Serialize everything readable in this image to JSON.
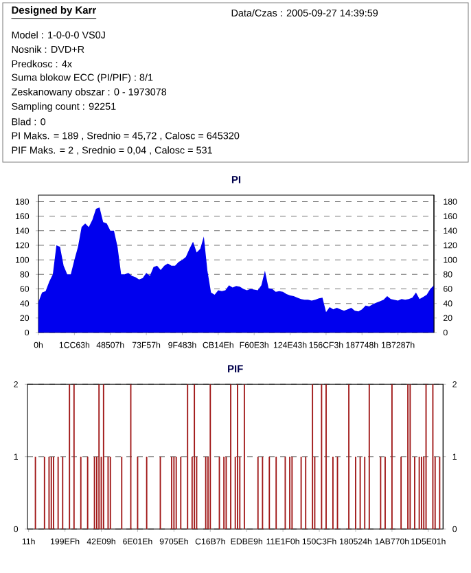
{
  "chart_data": [
    {
      "type": "other",
      "title": "Designed by Karr",
      "annotations": [
        "Data/Czas : 2005-09-27 14:39:59",
        "Model : 1-0-0-0 VS0J",
        "Nosnik : DVD+R",
        "Predkosc : 4x",
        "Suma blokow ECC (PI/PIF) : 8/1",
        "Zeskanowany obszar : 0 - 1973078",
        "Sampling count : 92251",
        "Blad : 0",
        "PI Maks. = 189 , Srednio = 45,72 , Calosc = 645320",
        "PIF Maks. = 2 , Srednio = 0,04 , Calosc = 531"
      ]
    },
    {
      "type": "area",
      "title": "PI",
      "color": "#0000ee",
      "grid": "y",
      "categories": [
        "0h",
        null,
        null,
        null,
        null,
        null,
        null,
        null,
        null,
        null,
        "1CC63h",
        null,
        null,
        null,
        null,
        null,
        null,
        null,
        null,
        null,
        "48507h",
        null,
        null,
        null,
        null,
        null,
        null,
        null,
        null,
        null,
        "73F57h",
        null,
        null,
        null,
        null,
        null,
        null,
        null,
        null,
        null,
        "9F483h",
        null,
        null,
        null,
        null,
        null,
        null,
        null,
        null,
        null,
        "CB14Eh",
        null,
        null,
        null,
        null,
        null,
        null,
        null,
        null,
        null,
        "F60E3h",
        null,
        null,
        null,
        null,
        null,
        null,
        null,
        null,
        null,
        "124E43h",
        null,
        null,
        null,
        null,
        null,
        null,
        null,
        null,
        null,
        "156CF3h",
        null,
        null,
        null,
        null,
        null,
        null,
        null,
        null,
        null,
        "187748h",
        null,
        null,
        null,
        null,
        null,
        null,
        null,
        null,
        null,
        "1B7287h",
        null,
        null,
        null,
        null,
        null,
        null,
        null,
        null,
        null,
        null
      ],
      "values": [
        42,
        55,
        57,
        70,
        80,
        120,
        118,
        92,
        80,
        80,
        100,
        118,
        145,
        150,
        145,
        155,
        170,
        172,
        152,
        150,
        140,
        140,
        118,
        80,
        80,
        82,
        78,
        76,
        73,
        75,
        82,
        78,
        90,
        92,
        86,
        92,
        95,
        92,
        92,
        97,
        100,
        104,
        115,
        125,
        110,
        115,
        132,
        85,
        55,
        52,
        58,
        57,
        58,
        65,
        62,
        64,
        63,
        60,
        58,
        60,
        59,
        58,
        65,
        85,
        61,
        60,
        56,
        57,
        56,
        53,
        51,
        50,
        48,
        46,
        45,
        45,
        44,
        45,
        47,
        48,
        28,
        35,
        32,
        34,
        32,
        30,
        32,
        34,
        30,
        29,
        32,
        37,
        36,
        39,
        41,
        43,
        45,
        50,
        46,
        45,
        44,
        46,
        45,
        46,
        48,
        55,
        46,
        49,
        52,
        60,
        65
      ],
      "ylim": [
        0,
        189
      ],
      "yticks": [
        0,
        20,
        40,
        60,
        80,
        100,
        120,
        140,
        160,
        180
      ],
      "y2lim": [
        0,
        189
      ],
      "y2ticks": [
        0,
        20,
        40,
        60,
        80,
        100,
        120,
        140,
        160,
        180
      ]
    },
    {
      "type": "bar",
      "title": "PIF",
      "color": "#a01818",
      "grid": "y",
      "categories": [
        "11h",
        null,
        null,
        null,
        null,
        null,
        null,
        null,
        null,
        null,
        null,
        null,
        null,
        null,
        null,
        null,
        "199EFh",
        null,
        null,
        null,
        null,
        null,
        null,
        null,
        null,
        null,
        null,
        null,
        null,
        null,
        null,
        null,
        "42E09h",
        null,
        null,
        null,
        null,
        null,
        null,
        null,
        null,
        null,
        null,
        null,
        null,
        null,
        null,
        null,
        "6E01Eh",
        null,
        null,
        null,
        null,
        null,
        null,
        null,
        null,
        null,
        null,
        null,
        null,
        null,
        null,
        null,
        "9705Eh",
        null,
        null,
        null,
        null,
        null,
        null,
        null,
        null,
        null,
        null,
        null,
        null,
        null,
        null,
        null,
        "C16B7h",
        null,
        null,
        null,
        null,
        null,
        null,
        null,
        null,
        null,
        null,
        null,
        null,
        null,
        null,
        null,
        "EDBE9h",
        null,
        null,
        null,
        null,
        null,
        null,
        null,
        null,
        null,
        null,
        null,
        null,
        null,
        null,
        null,
        "11E1F0h",
        null,
        null,
        null,
        null,
        null,
        null,
        null,
        null,
        null,
        null,
        null,
        null,
        null,
        null,
        null,
        "150C3Fh",
        null,
        null,
        null,
        null,
        null,
        null,
        null,
        null,
        null,
        null,
        null,
        null,
        null,
        null,
        null,
        "180524h",
        null,
        null,
        null,
        null,
        null,
        null,
        null,
        null,
        null,
        null,
        null,
        null,
        null,
        null,
        null,
        "1AB770h",
        null,
        null,
        null,
        null,
        null,
        null,
        null,
        null,
        null,
        null,
        null,
        null,
        null,
        null,
        null,
        "1D5E01h",
        null,
        null,
        null,
        null,
        null,
        null
      ],
      "values": [
        0,
        0,
        0,
        1,
        0,
        0,
        0,
        1,
        0,
        1,
        1,
        1,
        0,
        1,
        0,
        1,
        0,
        0,
        2,
        0,
        2,
        0,
        0,
        1,
        0,
        0,
        1,
        0,
        0,
        1,
        1,
        2,
        1,
        2,
        0,
        1,
        1,
        0,
        0,
        0,
        0,
        1,
        0,
        0,
        0,
        2,
        0,
        0,
        1,
        0,
        0,
        0,
        1,
        0,
        0,
        0,
        0,
        0,
        1,
        0,
        0,
        0,
        0,
        1,
        1,
        1,
        0,
        1,
        0,
        0,
        2,
        0,
        1,
        2,
        1,
        0,
        0,
        0,
        1,
        1,
        2,
        0,
        0,
        0,
        1,
        0,
        1,
        1,
        0,
        2,
        0,
        1,
        2,
        1,
        0,
        2,
        0,
        0,
        0,
        0,
        0,
        1,
        0,
        1,
        0,
        0,
        1,
        0,
        0,
        1,
        0,
        0,
        0,
        1,
        0,
        1,
        1,
        0,
        0,
        0,
        1,
        0,
        1,
        0,
        0,
        2,
        1,
        0,
        0,
        2,
        0,
        2,
        0,
        0,
        1,
        0,
        1,
        0,
        0,
        0,
        0,
        2,
        0,
        0,
        1,
        0,
        1,
        0,
        1,
        0,
        2,
        0,
        0,
        0,
        0,
        1,
        0,
        1,
        0,
        0,
        2,
        0,
        0,
        0,
        1,
        0,
        0,
        2,
        2,
        0,
        1,
        0,
        1,
        1,
        1,
        2,
        0,
        0,
        2,
        1,
        0,
        1,
        0
      ],
      "ylim": [
        0,
        2
      ],
      "yticks": [
        0,
        1,
        2
      ],
      "y2lim": [
        0,
        2
      ],
      "y2ticks": [
        0,
        1,
        2
      ]
    }
  ]
}
